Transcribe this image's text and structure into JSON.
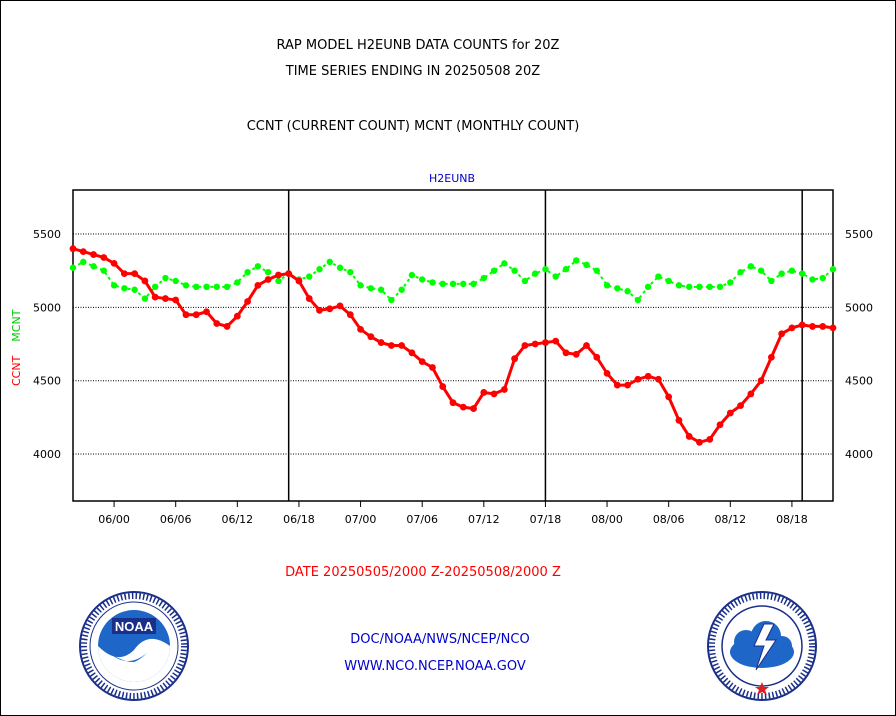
{
  "header": {
    "title_line1": "RAP MODEL H2EUNB DATA COUNTS for 20Z",
    "title_line2": "TIME SERIES ENDING IN 20250508 20Z",
    "title_line3": "CCNT (CURRENT COUNT) MCNT (MONTHLY COUNT)"
  },
  "footer": {
    "date_range": "DATE 20250505/2000 Z-20250508/2000 Z",
    "link1": "DOC/NOAA/NWS/NCEP/NCO",
    "link2": "WWW.NCO.NCEP.NOAA.GOV"
  },
  "colors": {
    "ccnt": "#ff0000",
    "mcnt": "#00ff00",
    "label_blue": "#0000cc",
    "grid": "#000000"
  },
  "chart_data": {
    "type": "line",
    "title": "H2EUNB",
    "ylabel_ccnt": "CCNT",
    "ylabel_mcnt": "MCNT",
    "ylim": [
      3680,
      5800
    ],
    "yticks": [
      4000,
      4500,
      5000,
      5500
    ],
    "x_tick_labels": [
      "06/00",
      "06/06",
      "06/12",
      "06/18",
      "07/00",
      "07/06",
      "07/12",
      "07/18",
      "08/00",
      "08/06",
      "08/12",
      "08/18"
    ],
    "x_range_hours": [
      -4,
      70
    ],
    "x_tick_hours": [
      0,
      6,
      12,
      18,
      24,
      30,
      36,
      42,
      48,
      54,
      60,
      66
    ],
    "day_boundaries_hours": [
      17,
      42,
      67
    ],
    "grid": "horizontal dotted",
    "series": [
      {
        "name": "CCNT",
        "color": "#ff0000",
        "x": [
          -4,
          -3,
          -2,
          -1,
          0,
          1,
          2,
          3,
          4,
          5,
          6,
          7,
          8,
          9,
          10,
          11,
          12,
          13,
          14,
          15,
          16,
          17,
          18,
          19,
          20,
          21,
          22,
          23,
          24,
          25,
          26,
          27,
          28,
          29,
          30,
          31,
          32,
          33,
          34,
          35,
          36,
          37,
          38,
          39,
          40,
          41,
          42,
          43,
          44,
          45,
          46,
          47,
          48,
          49,
          50,
          51,
          52,
          53,
          54,
          55,
          56,
          57,
          58,
          59,
          60,
          61,
          62,
          63,
          64,
          65,
          66,
          67,
          68,
          69,
          70
        ],
        "values": [
          5400,
          5380,
          5360,
          5340,
          5300,
          5230,
          5230,
          5180,
          5070,
          5060,
          5050,
          4950,
          4950,
          4970,
          4890,
          4870,
          4940,
          5040,
          5150,
          5190,
          5220,
          5230,
          5180,
          5060,
          4980,
          4990,
          5010,
          4950,
          4850,
          4800,
          4760,
          4740,
          4740,
          4690,
          4630,
          4590,
          4460,
          4350,
          4320,
          4310,
          4420,
          4410,
          4440,
          4650,
          4740,
          4750,
          4760,
          4770,
          4690,
          4680,
          4740,
          4660,
          4550,
          4470,
          4470,
          4510,
          4530,
          4510,
          4390,
          4230,
          4120,
          4080,
          4100,
          4200,
          4280,
          4330,
          4410,
          4500,
          4660,
          4820,
          4860,
          4880,
          4870,
          4870,
          4860
        ]
      },
      {
        "name": "MCNT",
        "color": "#00ff00",
        "x": [
          -4,
          -3,
          -2,
          -1,
          0,
          1,
          2,
          3,
          4,
          5,
          6,
          7,
          8,
          9,
          10,
          11,
          12,
          13,
          14,
          15,
          16,
          17,
          18,
          19,
          20,
          21,
          22,
          23,
          24,
          25,
          26,
          27,
          28,
          29,
          30,
          31,
          32,
          33,
          34,
          35,
          36,
          37,
          38,
          39,
          40,
          41,
          42,
          43,
          44,
          45,
          46,
          47,
          48,
          49,
          50,
          51,
          52,
          53,
          54,
          55,
          56,
          57,
          58,
          59,
          60,
          61,
          62,
          63,
          64,
          65,
          66,
          67,
          68,
          69,
          70
        ],
        "values": [
          5270,
          5310,
          5280,
          5250,
          5150,
          5130,
          5120,
          5060,
          5140,
          5200,
          5180,
          5150,
          5140,
          5140,
          5140,
          5140,
          5170,
          5240,
          5280,
          5240,
          5180,
          5230,
          5190,
          5210,
          5260,
          5310,
          5270,
          5240,
          5150,
          5130,
          5120,
          5050,
          5120,
          5220,
          5190,
          5170,
          5160,
          5160,
          5160,
          5160,
          5200,
          5250,
          5300,
          5250,
          5180,
          5230,
          5260,
          5210,
          5260,
          5320,
          5290,
          5250,
          5150,
          5130,
          5110,
          5050,
          5140,
          5210,
          5180,
          5150,
          5140,
          5140,
          5140,
          5140,
          5170,
          5240,
          5280,
          5250,
          5180,
          5230,
          5250,
          5230,
          5190,
          5200,
          5260
        ]
      }
    ]
  }
}
